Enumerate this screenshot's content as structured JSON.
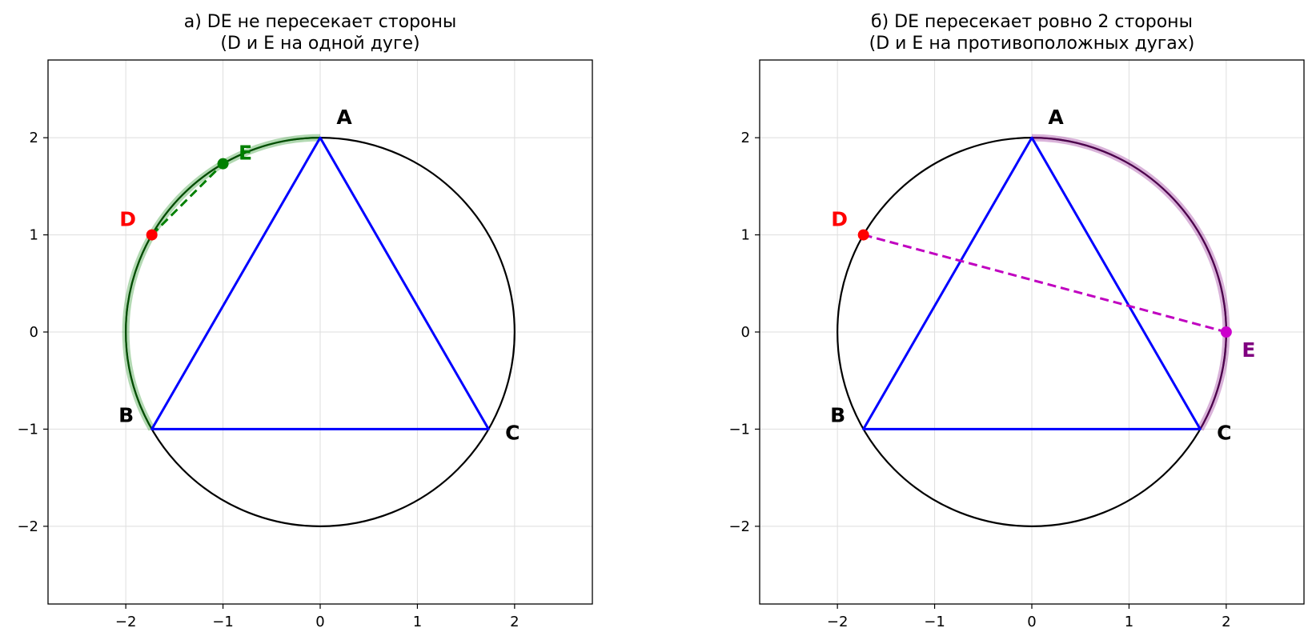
{
  "chart_data": [
    {
      "type": "scatter",
      "title": [
        "а) DE не пересекает стороны",
        "(D и E на одной дуге)"
      ],
      "xlim": [
        -2.8,
        2.8
      ],
      "ylim": [
        -2.8,
        2.8
      ],
      "xticks": [
        -2,
        -1,
        0,
        1,
        2
      ],
      "yticks": [
        -2,
        -1,
        0,
        1,
        2
      ],
      "grid": true,
      "circle": {
        "center": [
          0,
          0
        ],
        "radius": 2,
        "color": "#000000"
      },
      "triangle": {
        "color": "#0000ff",
        "vertices": [
          {
            "label": "A",
            "x": 0,
            "y": 2
          },
          {
            "label": "B",
            "x": -1.732,
            "y": -1
          },
          {
            "label": "C",
            "x": 1.732,
            "y": -1
          }
        ]
      },
      "highlight_arc": {
        "from_deg": 90,
        "to_deg": 210,
        "color": "#008000"
      },
      "points": [
        {
          "label": "D",
          "x": -1.732,
          "y": 1,
          "color": "#ff0000"
        },
        {
          "label": "E",
          "x": -1,
          "y": 1.732,
          "color": "#008000"
        }
      ],
      "segment": {
        "from": "D",
        "to": "E",
        "color": "#008000",
        "style": "dashed"
      }
    },
    {
      "type": "scatter",
      "title": [
        "б) DE пересекает ровно 2 стороны",
        "(D и E на противоположных дугах)"
      ],
      "xlim": [
        -2.8,
        2.8
      ],
      "ylim": [
        -2.8,
        2.8
      ],
      "xticks": [
        -2,
        -1,
        0,
        1,
        2
      ],
      "yticks": [
        -2,
        -1,
        0,
        1,
        2
      ],
      "grid": true,
      "circle": {
        "center": [
          0,
          0
        ],
        "radius": 2,
        "color": "#000000"
      },
      "triangle": {
        "color": "#0000ff",
        "vertices": [
          {
            "label": "A",
            "x": 0,
            "y": 2
          },
          {
            "label": "B",
            "x": -1.732,
            "y": -1
          },
          {
            "label": "C",
            "x": 1.732,
            "y": -1
          }
        ]
      },
      "highlight_arc": {
        "from_deg": -30,
        "to_deg": 90,
        "color": "#800080"
      },
      "points": [
        {
          "label": "D",
          "x": -1.732,
          "y": 1,
          "color": "#ff0000"
        },
        {
          "label": "E",
          "x": 2,
          "y": 0,
          "color": "#cc00cc",
          "label_color": "#800080"
        }
      ],
      "segment": {
        "from": "D",
        "to": "E",
        "color": "#c000c0",
        "style": "dashed"
      }
    }
  ]
}
